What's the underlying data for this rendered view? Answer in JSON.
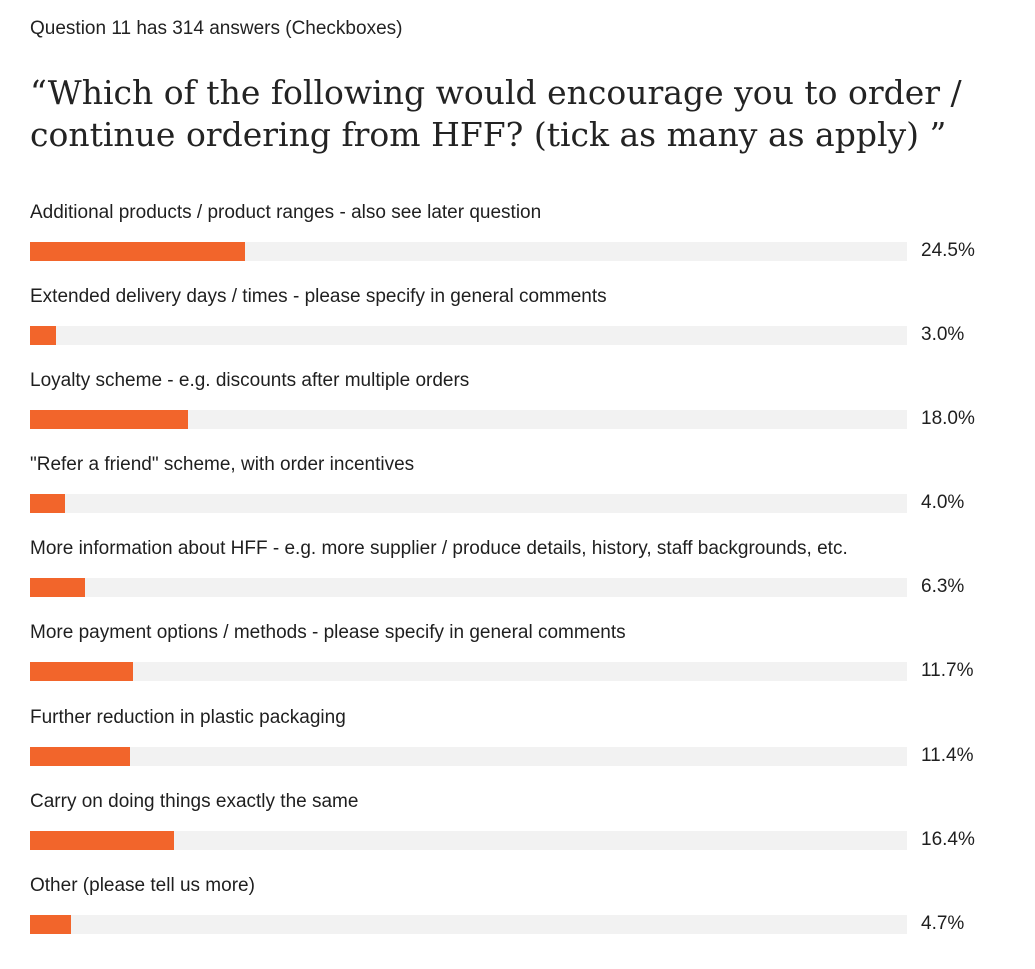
{
  "header": {
    "meta": "Question 11 has 314 answers (Checkboxes)",
    "title": "“Which of the following would encourage you to order / continue ordering from HFF? (tick as many as apply) ”"
  },
  "colors": {
    "bar": "#f2652b",
    "track": "#f2f2f2"
  },
  "chart_data": {
    "type": "bar",
    "orientation": "horizontal",
    "title": "“Which of the following would encourage you to order / continue ordering from HFF? (tick as many as apply) ”",
    "categories": [
      "Additional products / product ranges - also see later question",
      "Extended delivery days / times - please specify in general comments",
      "Loyalty scheme - e.g. discounts after multiple orders",
      "\"Refer a friend\" scheme, with order incentives",
      "More information about HFF - e.g. more supplier / produce details, history, staff backgrounds, etc.",
      "More payment options / methods - please specify in general comments",
      "Further reduction in plastic packaging",
      "Carry on doing things exactly the same",
      "Other (please tell us more)"
    ],
    "values": [
      24.5,
      3.0,
      18.0,
      4.0,
      6.3,
      11.7,
      11.4,
      16.4,
      4.7
    ],
    "value_labels": [
      "24.5%",
      "3.0%",
      "18.0%",
      "4.0%",
      "6.3%",
      "11.7%",
      "11.4%",
      "16.4%",
      "4.7%"
    ],
    "xlim": [
      0,
      100
    ],
    "grid": false,
    "legend": "none"
  }
}
